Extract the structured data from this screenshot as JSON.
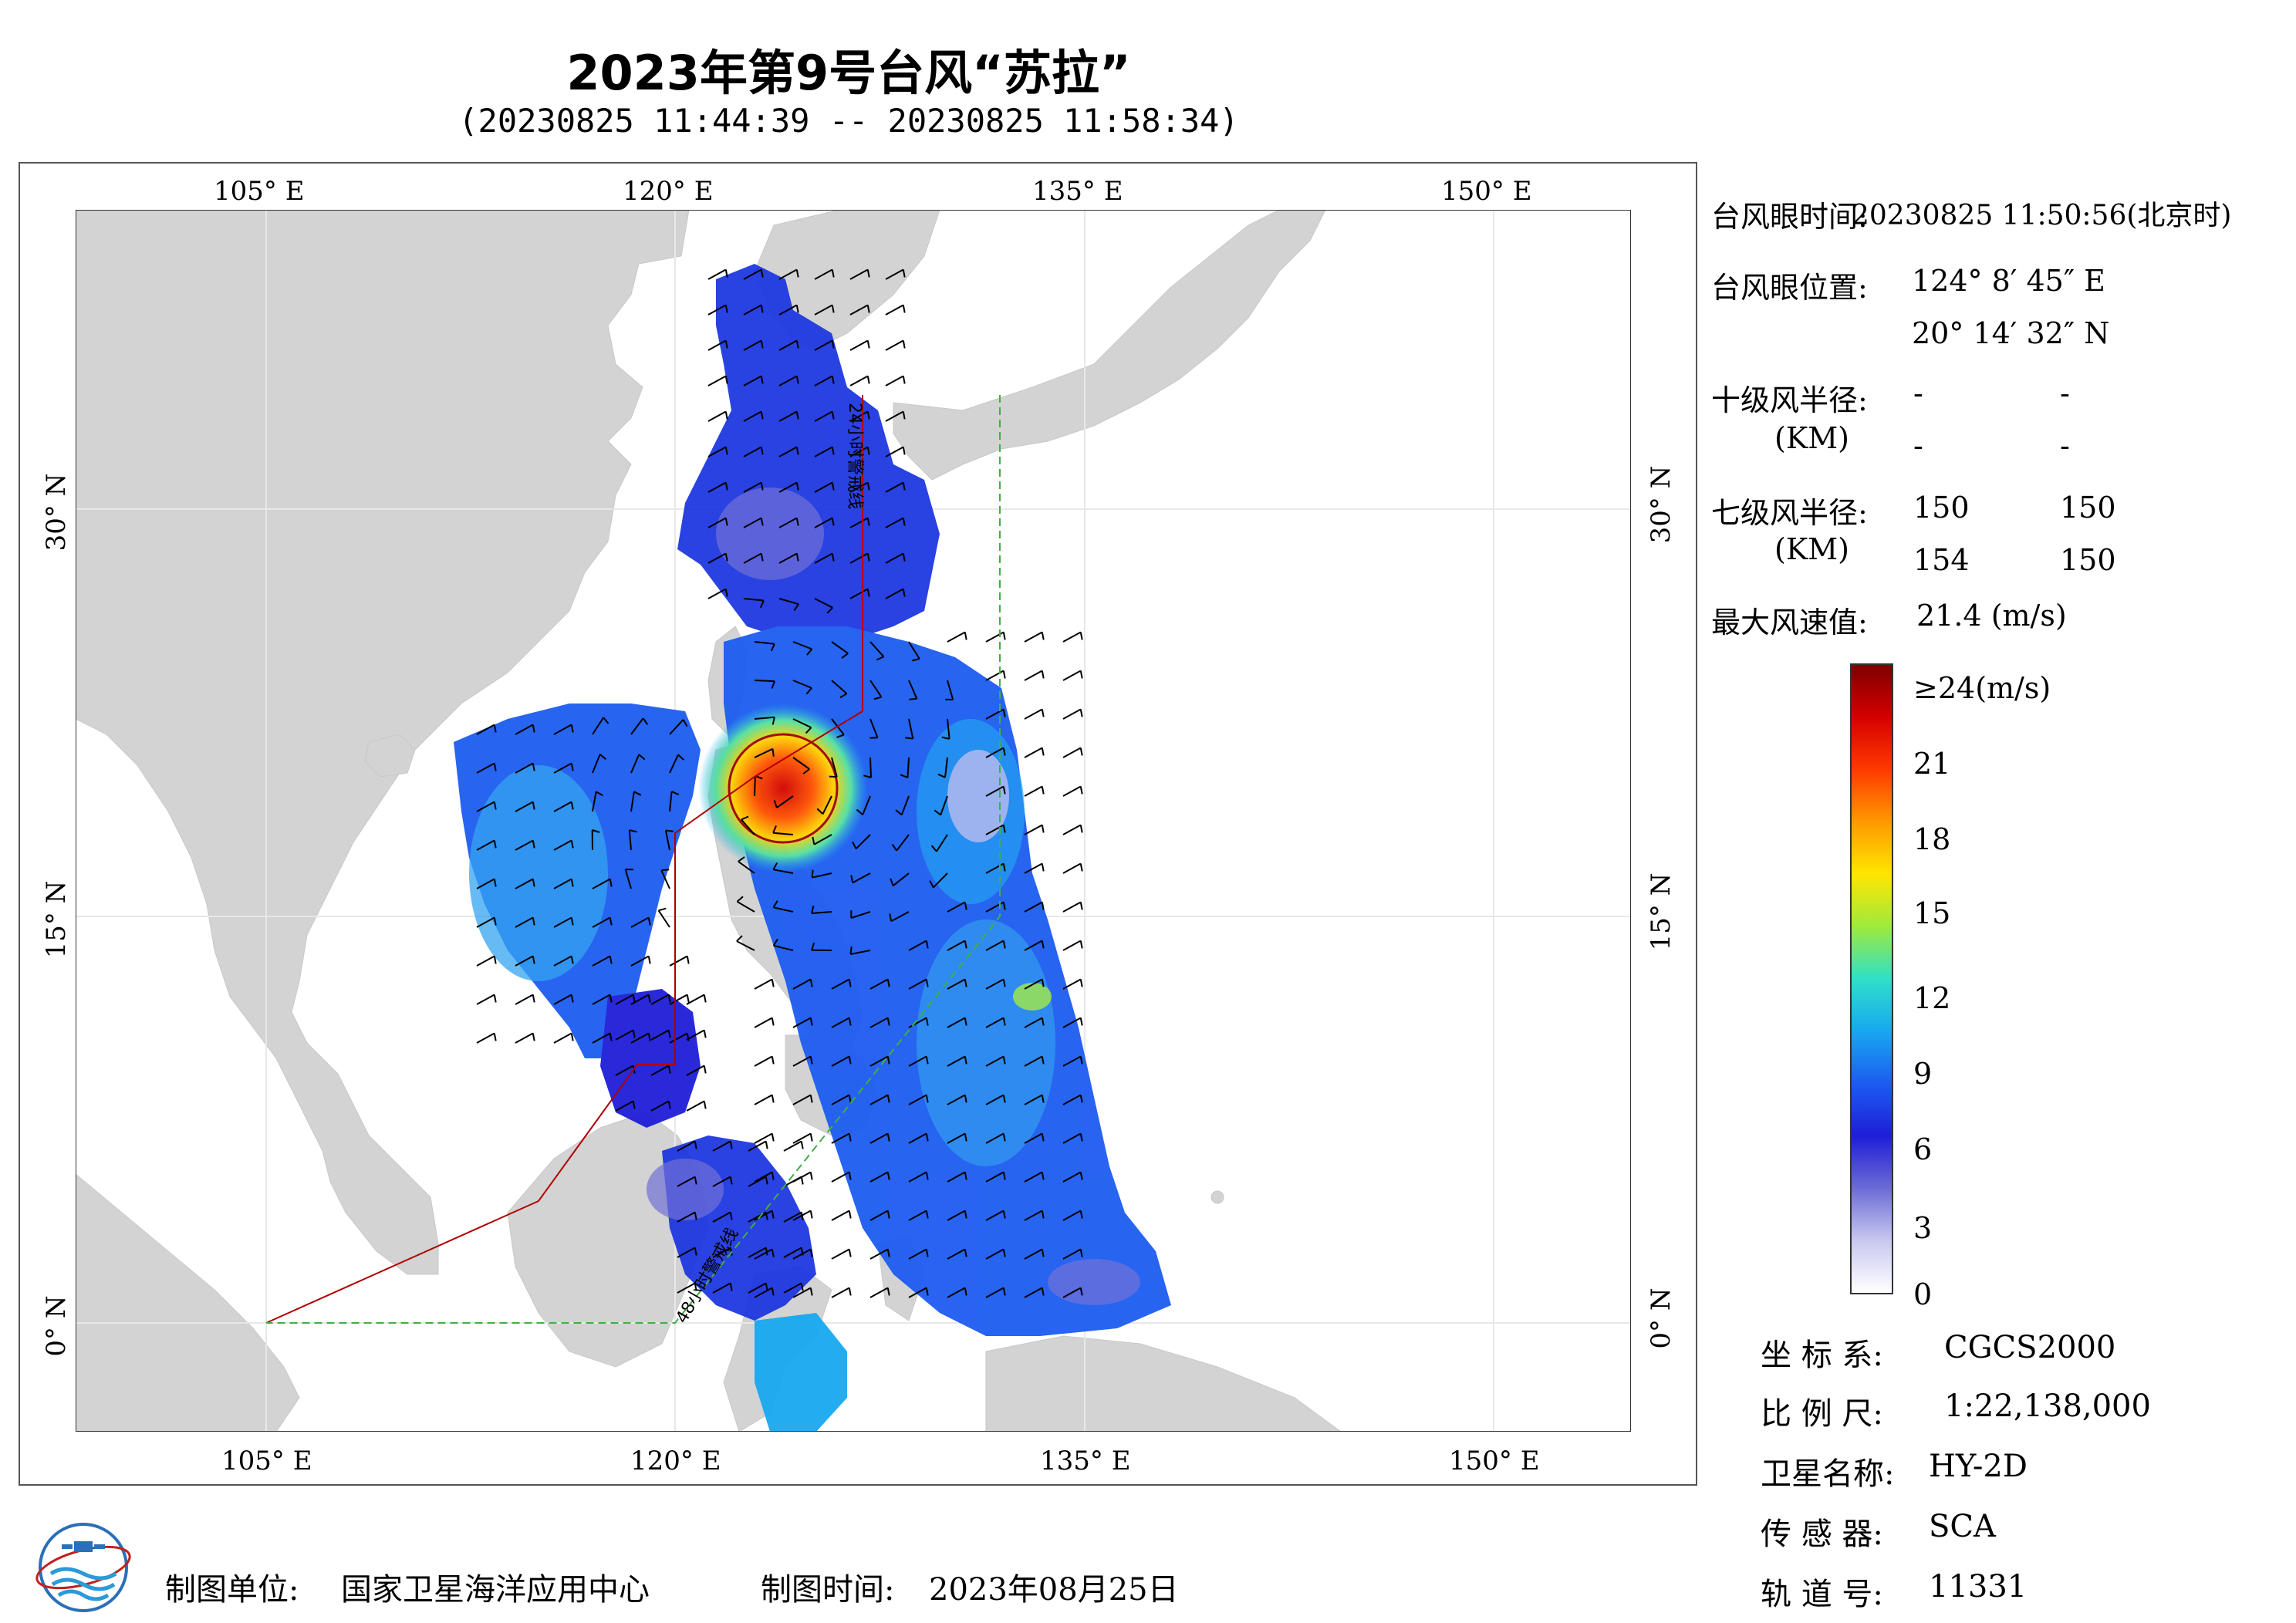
{
  "header": {
    "title": "2023年第9号台风“苏拉”",
    "subtitle": "(20230825 11:44:39 -- 20230825 11:58:34)"
  },
  "axes": {
    "lon_labels": [
      "105° E",
      "120° E",
      "135° E",
      "150° E"
    ],
    "lat_labels": [
      "30° N",
      "15° N",
      "0° N"
    ]
  },
  "map_lines": {
    "line_24h": "24小时警戒线",
    "line_48h": "48小时警戒线"
  },
  "info": {
    "eye_time_label": "台风眼时间:",
    "eye_time_value": "20230825 11:50:56(北京时)",
    "eye_pos_label": "台风眼位置:",
    "eye_lon": "124° 8′ 45″ E",
    "eye_lat": "20° 14′ 32″ N",
    "r10_label": "十级风半径:",
    "r10_unit": "(KM)",
    "r10_values": [
      "-",
      "-",
      "-",
      "-"
    ],
    "r7_label": "七级风半径:",
    "r7_unit": "(KM)",
    "r7_values": [
      "150",
      "150",
      "154",
      "150"
    ],
    "max_wind_label": "最大风速值:",
    "max_wind_value": "21.4 (m/s)"
  },
  "colorbar": {
    "labels": [
      "≥24(m/s)",
      "21",
      "18",
      "15",
      "12",
      "9",
      "6",
      "3",
      "0"
    ],
    "colors": [
      "#7f0000",
      "#d40000",
      "#ff3a00",
      "#ff9900",
      "#ffe600",
      "#9eea3c",
      "#2fe0c8",
      "#18a8f0",
      "#1c5cf0",
      "#1e1ed8",
      "#6b6bd6",
      "#c8c8f0",
      "#ffffff"
    ]
  },
  "meta": {
    "crs_label": "坐 标 系:",
    "crs_value": "CGCS2000",
    "scale_label": "比 例 尺:",
    "scale_value": "1:22,138,000",
    "satellite_label": "卫星名称:",
    "satellite_value": "HY-2D",
    "sensor_label": "传 感 器:",
    "sensor_value": "SCA",
    "orbit_label": "轨 道 号:",
    "orbit_value": "11331"
  },
  "footer": {
    "producer_label": "制图单位:",
    "producer_value": "国家卫星海洋应用中心",
    "date_label": "制图时间:",
    "date_value": "2023年08月25日"
  }
}
